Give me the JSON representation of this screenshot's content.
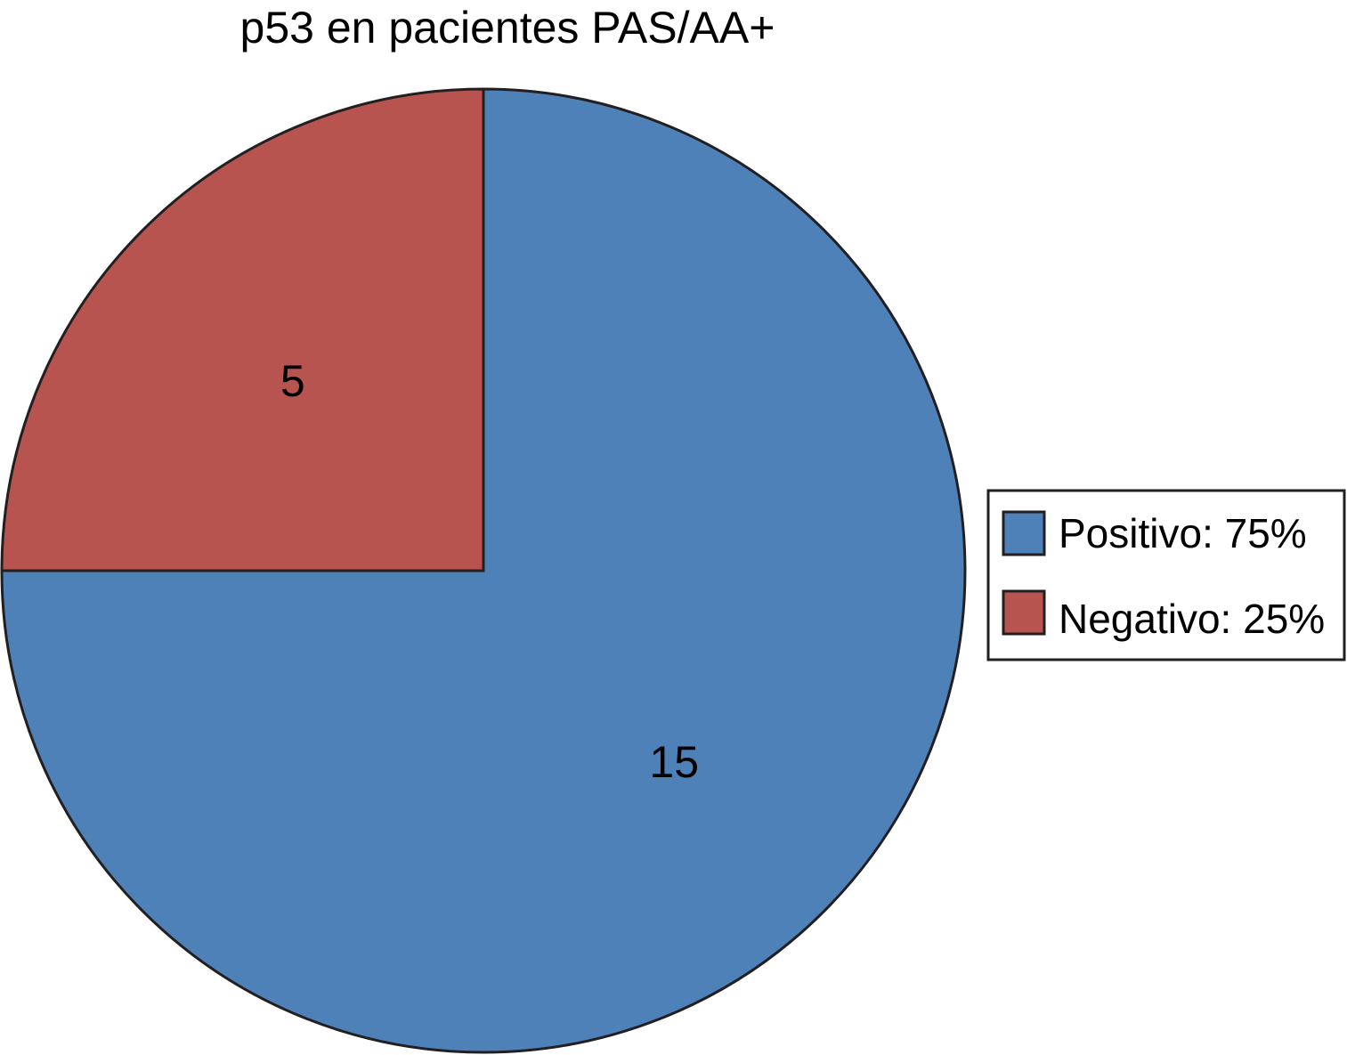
{
  "chart_data": {
    "type": "pie",
    "title": "p53 en pacientes PAS/AA+",
    "categories": [
      "Positivo",
      "Negativo"
    ],
    "values": [
      15,
      5
    ],
    "data_labels": [
      "15",
      "5"
    ],
    "legend_labels": [
      "Positivo: 75%",
      "Negativo: 25%"
    ],
    "colors": [
      "#4f81b9",
      "#b85450"
    ],
    "start_angle_deg": 0,
    "direction": "clockwise",
    "legend_placement": "right"
  }
}
